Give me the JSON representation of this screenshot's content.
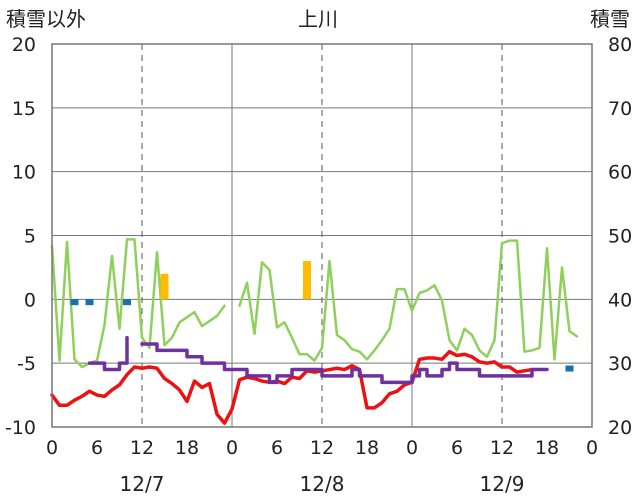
{
  "title": "上川",
  "left_axis_label": "積雪以外",
  "right_axis_label": "積雪",
  "colors": {
    "temperature": "#ee1111",
    "precipitation": "#ffbb00",
    "wind_speed": "#1a6fb3",
    "humidity_like": "#8ed15a",
    "snow_depth": "#7030a0"
  },
  "chart_data": {
    "type": "line",
    "title": "上川",
    "ylabel_left": "積雪以外",
    "ylabel_right": "積雪",
    "ylim_left": [
      -10,
      20
    ],
    "ylim_right": [
      20,
      80
    ],
    "yticks_left": [
      20,
      15,
      10,
      5,
      0,
      -5,
      -10
    ],
    "yticks_right": [
      80,
      70,
      60,
      50,
      40,
      30,
      20
    ],
    "xlim_hours": [
      0,
      72
    ],
    "xtick_labels": [
      "0",
      "6",
      "12",
      "18",
      "0",
      "6",
      "12",
      "18",
      "0",
      "6",
      "12",
      "18",
      "0"
    ],
    "date_labels": [
      {
        "label": "12/7",
        "hour": 12
      },
      {
        "label": "12/8",
        "hour": 36
      },
      {
        "label": "12/9",
        "hour": 60
      }
    ],
    "grid": true,
    "series": [
      {
        "kind": "line",
        "axis": "left",
        "color": "#ee1111",
        "width": 3.5,
        "points": [
          [
            0,
            -7.5
          ],
          [
            1,
            -8.3
          ],
          [
            2,
            -8.3
          ],
          [
            3,
            -7.9
          ],
          [
            4,
            -7.6
          ],
          [
            5,
            -7.2
          ],
          [
            6,
            -7.5
          ],
          [
            7,
            -7.6
          ],
          [
            8,
            -7.1
          ],
          [
            9,
            -6.7
          ],
          [
            10,
            -5.9
          ],
          [
            11,
            -5.3
          ],
          [
            12,
            -5.4
          ],
          [
            13,
            -5.3
          ],
          [
            14,
            -5.4
          ],
          [
            15,
            -6.2
          ],
          [
            16,
            -6.6
          ],
          [
            17,
            -7.1
          ],
          [
            18,
            -8.0
          ],
          [
            19,
            -6.4
          ],
          [
            20,
            -6.9
          ],
          [
            21,
            -6.6
          ],
          [
            22,
            -9.0
          ],
          [
            23,
            -9.7
          ],
          [
            24,
            -8.6
          ],
          [
            25,
            -6.3
          ],
          [
            26,
            -6.1
          ],
          [
            27,
            -6.2
          ],
          [
            28,
            -6.4
          ],
          [
            29,
            -6.5
          ],
          [
            30,
            -6.4
          ],
          [
            31,
            -6.6
          ],
          [
            32,
            -6.1
          ],
          [
            33,
            -6.2
          ],
          [
            34,
            -5.6
          ],
          [
            35,
            -5.7
          ],
          [
            36,
            -5.6
          ],
          [
            37,
            -5.5
          ],
          [
            38,
            -5.4
          ],
          [
            39,
            -5.5
          ],
          [
            40,
            -5.2
          ],
          [
            41,
            -5.5
          ],
          [
            42,
            -8.5
          ],
          [
            43,
            -8.5
          ],
          [
            44,
            -8.1
          ],
          [
            45,
            -7.4
          ],
          [
            46,
            -7.2
          ],
          [
            47,
            -6.7
          ],
          [
            48,
            -6.5
          ],
          [
            49,
            -4.7
          ],
          [
            50,
            -4.6
          ],
          [
            51,
            -4.6
          ],
          [
            52,
            -4.7
          ],
          [
            53,
            -4.1
          ],
          [
            54,
            -4.4
          ],
          [
            55,
            -4.3
          ],
          [
            56,
            -4.5
          ],
          [
            57,
            -4.9
          ],
          [
            58,
            -5.0
          ],
          [
            59,
            -4.9
          ],
          [
            60,
            -5.3
          ],
          [
            61,
            -5.3
          ],
          [
            62,
            -5.7
          ],
          [
            63,
            -5.6
          ],
          [
            64,
            -5.5
          ]
        ]
      },
      {
        "kind": "line",
        "axis": "left",
        "color": "#8ed15a",
        "width": 2.5,
        "points": [
          [
            0,
            4.2
          ],
          [
            1,
            -4.8
          ],
          [
            2,
            4.5
          ],
          [
            3,
            -4.7
          ],
          [
            4,
            -5.3
          ],
          [
            5,
            -5.0
          ],
          [
            6,
            -4.8
          ],
          [
            7,
            -2.0
          ],
          [
            8,
            3.4
          ],
          [
            9,
            -2.3
          ],
          [
            10,
            4.7
          ],
          [
            11,
            4.7
          ],
          [
            12,
            -3.0
          ],
          [
            13,
            -3.8
          ],
          [
            14,
            3.7
          ],
          [
            15,
            -3.6
          ],
          [
            16,
            -3.0
          ],
          [
            17,
            -1.8
          ],
          [
            18,
            -1.4
          ],
          [
            19,
            -1.0
          ],
          [
            20,
            -2.1
          ],
          [
            21,
            -1.7
          ],
          [
            22,
            -1.3
          ],
          [
            23,
            -0.5
          ]
        ]
      },
      {
        "kind": "line",
        "axis": "left",
        "color": "#8ed15a",
        "width": 2.5,
        "points": [
          [
            25,
            -0.5
          ],
          [
            26,
            1.3
          ],
          [
            27,
            -2.7
          ],
          [
            28,
            2.9
          ],
          [
            29,
            2.3
          ],
          [
            30,
            -2.2
          ],
          [
            31,
            -1.8
          ],
          [
            32,
            -3.0
          ],
          [
            33,
            -4.3
          ],
          [
            34,
            -4.3
          ],
          [
            35,
            -4.8
          ],
          [
            36,
            -3.8
          ],
          [
            37,
            3.0
          ],
          [
            38,
            -2.8
          ],
          [
            39,
            -3.2
          ],
          [
            40,
            -3.9
          ],
          [
            41,
            -4.1
          ],
          [
            42,
            -4.7
          ],
          [
            43,
            -4.0
          ],
          [
            44,
            -3.2
          ],
          [
            45,
            -2.3
          ],
          [
            46,
            0.8
          ],
          [
            47,
            0.8
          ],
          [
            48,
            -0.9
          ],
          [
            49,
            0.5
          ],
          [
            50,
            0.7
          ],
          [
            51,
            1.1
          ],
          [
            52,
            -0.1
          ],
          [
            53,
            -3.2
          ],
          [
            54,
            -4.0
          ],
          [
            55,
            -2.3
          ],
          [
            56,
            -2.8
          ],
          [
            57,
            -4.0
          ],
          [
            58,
            -4.5
          ],
          [
            59,
            -3.2
          ],
          [
            60,
            4.4
          ],
          [
            61,
            4.6
          ],
          [
            62,
            4.6
          ],
          [
            63,
            -4.1
          ],
          [
            64,
            -4.0
          ],
          [
            65,
            -3.8
          ],
          [
            66,
            4.0
          ],
          [
            67,
            -4.7
          ],
          [
            68,
            2.5
          ],
          [
            69,
            -2.5
          ],
          [
            70,
            -2.9
          ]
        ]
      },
      {
        "kind": "step",
        "axis": "right",
        "color": "#7030a0",
        "width": 3.5,
        "points": [
          [
            5,
            30
          ],
          [
            6,
            30
          ],
          [
            7,
            29
          ],
          [
            8,
            29
          ],
          [
            9,
            30
          ],
          [
            10,
            34
          ]
        ]
      },
      {
        "kind": "step",
        "axis": "right",
        "color": "#7030a0",
        "width": 3.5,
        "points": [
          [
            12,
            33
          ],
          [
            13,
            33
          ],
          [
            14,
            32
          ],
          [
            15,
            32
          ],
          [
            16,
            32
          ],
          [
            17,
            32
          ],
          [
            18,
            31
          ],
          [
            19,
            31
          ],
          [
            20,
            30
          ],
          [
            21,
            30
          ],
          [
            22,
            30
          ],
          [
            23,
            29
          ],
          [
            24,
            29
          ],
          [
            25,
            29
          ],
          [
            26,
            28
          ],
          [
            27,
            28
          ],
          [
            28,
            28
          ],
          [
            29,
            27
          ],
          [
            30,
            28
          ],
          [
            31,
            28
          ],
          [
            32,
            29
          ],
          [
            33,
            29
          ],
          [
            34,
            29
          ],
          [
            35,
            29
          ],
          [
            36,
            28
          ],
          [
            37,
            28
          ],
          [
            38,
            28
          ],
          [
            39,
            28
          ],
          [
            40,
            29
          ],
          [
            41,
            28
          ],
          [
            42,
            28
          ],
          [
            43,
            28
          ],
          [
            44,
            27
          ],
          [
            45,
            27
          ],
          [
            46,
            27
          ],
          [
            47,
            27
          ],
          [
            48,
            28
          ],
          [
            49,
            29
          ],
          [
            50,
            28
          ],
          [
            51,
            28
          ],
          [
            52,
            29
          ],
          [
            53,
            30
          ],
          [
            54,
            29
          ],
          [
            55,
            29
          ],
          [
            56,
            29
          ],
          [
            57,
            28
          ],
          [
            58,
            28
          ],
          [
            59,
            28
          ],
          [
            60,
            28
          ],
          [
            61,
            28
          ],
          [
            62,
            28
          ],
          [
            63,
            28
          ],
          [
            64,
            29
          ],
          [
            65,
            29
          ],
          [
            66,
            29
          ]
        ]
      },
      {
        "kind": "bar",
        "axis": "left",
        "color": "#ffbb00",
        "points": [
          [
            15,
            2
          ],
          [
            34,
            3
          ]
        ]
      },
      {
        "kind": "marker",
        "axis": "left",
        "color": "#1a6fb3",
        "points": [
          [
            3,
            -0.3
          ],
          [
            5,
            -0.3
          ],
          [
            10,
            -0.3
          ],
          [
            69,
            -5.5
          ]
        ]
      }
    ]
  }
}
